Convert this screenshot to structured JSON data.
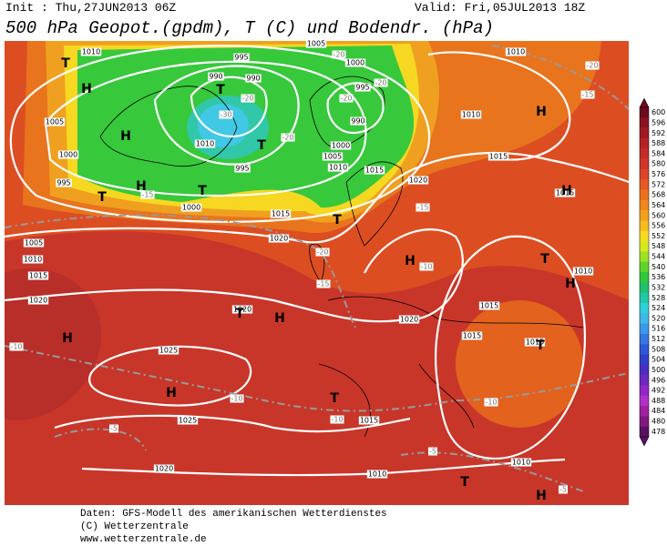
{
  "header": {
    "init": "Init : Thu,27JUN2013 06Z",
    "valid": "Valid: Fri,05JUL2013 18Z",
    "title": "500 hPa Geopot.(gpdm), T (C) und Bodendr. (hPa)"
  },
  "map": {
    "contour_labels": [
      1010,
      995,
      990,
      990,
      1005,
      1000,
      995,
      990,
      1010,
      1010,
      1015,
      1005,
      1000,
      995,
      1010,
      995,
      1000,
      1005,
      1010,
      1015,
      1000,
      1015,
      1020,
      1005,
      1010,
      1015,
      1020,
      1020,
      1020,
      1015,
      1010,
      1020,
      1015,
      1015,
      1015,
      1025,
      1025,
      1015,
      1020,
      1010,
      1010
    ],
    "temperature_labels": [
      -20,
      -20,
      -15,
      -20,
      -30,
      -20,
      -20,
      -20,
      -15,
      -15,
      -20,
      -15,
      -10,
      -10,
      -10,
      -10,
      -10,
      -5,
      -5,
      -5
    ],
    "symbols": [
      "T",
      "H",
      "T",
      "H",
      "T",
      "T",
      "H",
      "T",
      "T",
      "H",
      "H",
      "H",
      "T",
      "H",
      "T",
      "H",
      "H",
      "H",
      "T",
      "T",
      "T",
      "H"
    ]
  },
  "colorbar": {
    "labels": [
      600,
      596,
      592,
      588,
      584,
      580,
      576,
      572,
      568,
      564,
      560,
      556,
      552,
      548,
      544,
      540,
      536,
      532,
      528,
      524,
      520,
      516,
      512,
      508,
      504,
      500,
      496,
      492,
      488,
      484,
      480,
      478
    ],
    "colors": [
      "#6e0a1e",
      "#8c1222",
      "#a01a24",
      "#b42226",
      "#c42c28",
      "#d0362a",
      "#dc4628",
      "#e45a24",
      "#ea7020",
      "#f0881e",
      "#f4a01e",
      "#f6bc20",
      "#f8dc22",
      "#d8e820",
      "#9ee024",
      "#5cd42c",
      "#30c83c",
      "#20c070",
      "#20c8a8",
      "#30d0d8",
      "#40b8e8",
      "#3c98e8",
      "#3478e0",
      "#2c58d8",
      "#3040c8",
      "#4a30c0",
      "#6c28c0",
      "#9028c8",
      "#b030c8",
      "#a020a0",
      "#801880",
      "#5a1060"
    ]
  },
  "footer": {
    "source": "Daten: GFS-Modell des amerikanischen Wetterdienstes",
    "copyright": "(C) Wetterzentrale",
    "url": "www.wetterzentrale.de"
  }
}
